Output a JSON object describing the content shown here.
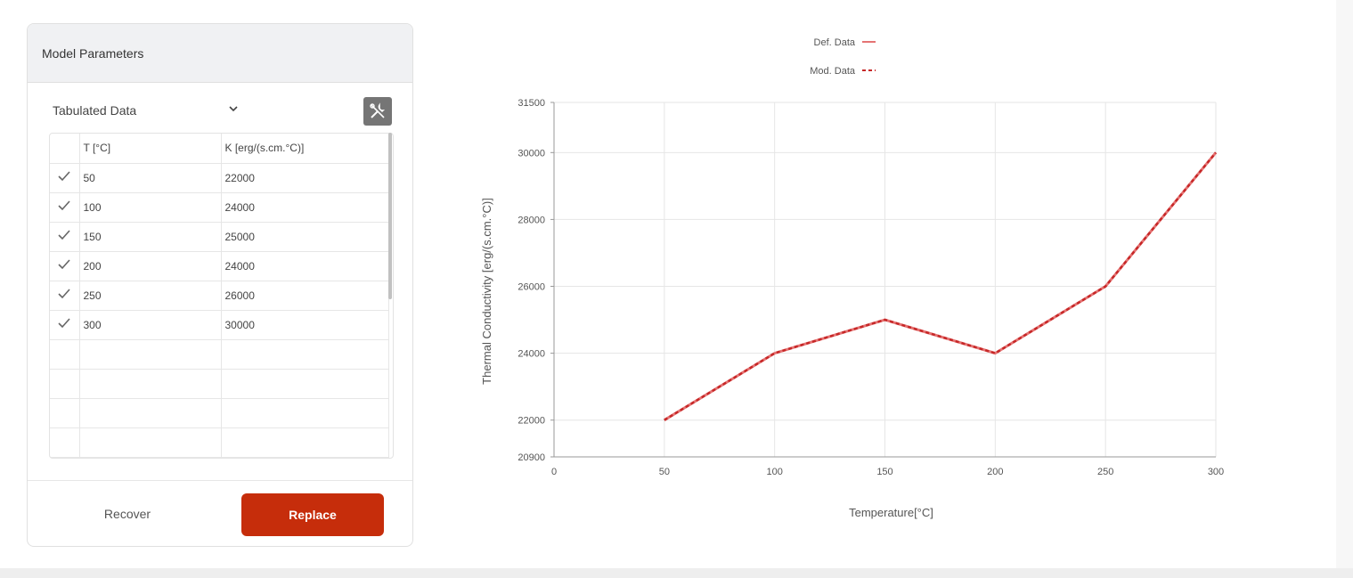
{
  "panel": {
    "title": "Model Parameters",
    "data_source_select": "Tabulated Data",
    "tool_icon": "tools-icon",
    "table": {
      "columns": [
        "",
        "T [°C]",
        "K [erg/(s.cm.°C)]"
      ],
      "rows": [
        {
          "checked": true,
          "t": "50",
          "k": "22000"
        },
        {
          "checked": true,
          "t": "100",
          "k": "24000"
        },
        {
          "checked": true,
          "t": "150",
          "k": "25000"
        },
        {
          "checked": true,
          "t": "200",
          "k": "24000"
        },
        {
          "checked": true,
          "t": "250",
          "k": "26000"
        },
        {
          "checked": true,
          "t": "300",
          "k": "30000"
        }
      ]
    },
    "recover_label": "Recover",
    "replace_label": "Replace",
    "accent_color": "#c62d0b"
  },
  "chart_data": {
    "type": "line",
    "series": [
      {
        "name": "Def. Data",
        "x": [
          50,
          100,
          150,
          200,
          250,
          300
        ],
        "values": [
          22000,
          24000,
          25000,
          24000,
          26000,
          30000
        ],
        "color": "#e57373",
        "style": "solid"
      },
      {
        "name": "Mod. Data",
        "x": [
          50,
          100,
          150,
          200,
          250,
          300
        ],
        "values": [
          22000,
          24000,
          25000,
          24000,
          26000,
          30000
        ],
        "color": "#c62828",
        "style": "dashed"
      }
    ],
    "xlabel": "Temperature[°C]",
    "ylabel": "Thermal Conductivity [erg/(s.cm.°C)]",
    "xlim": [
      0,
      300
    ],
    "ylim": [
      20900,
      31500
    ],
    "x_ticks": [
      0,
      50,
      100,
      150,
      200,
      250,
      300
    ],
    "y_ticks": [
      20900,
      22000,
      24000,
      26000,
      28000,
      30000,
      31500
    ],
    "legend_position": "top-center",
    "grid": true
  }
}
